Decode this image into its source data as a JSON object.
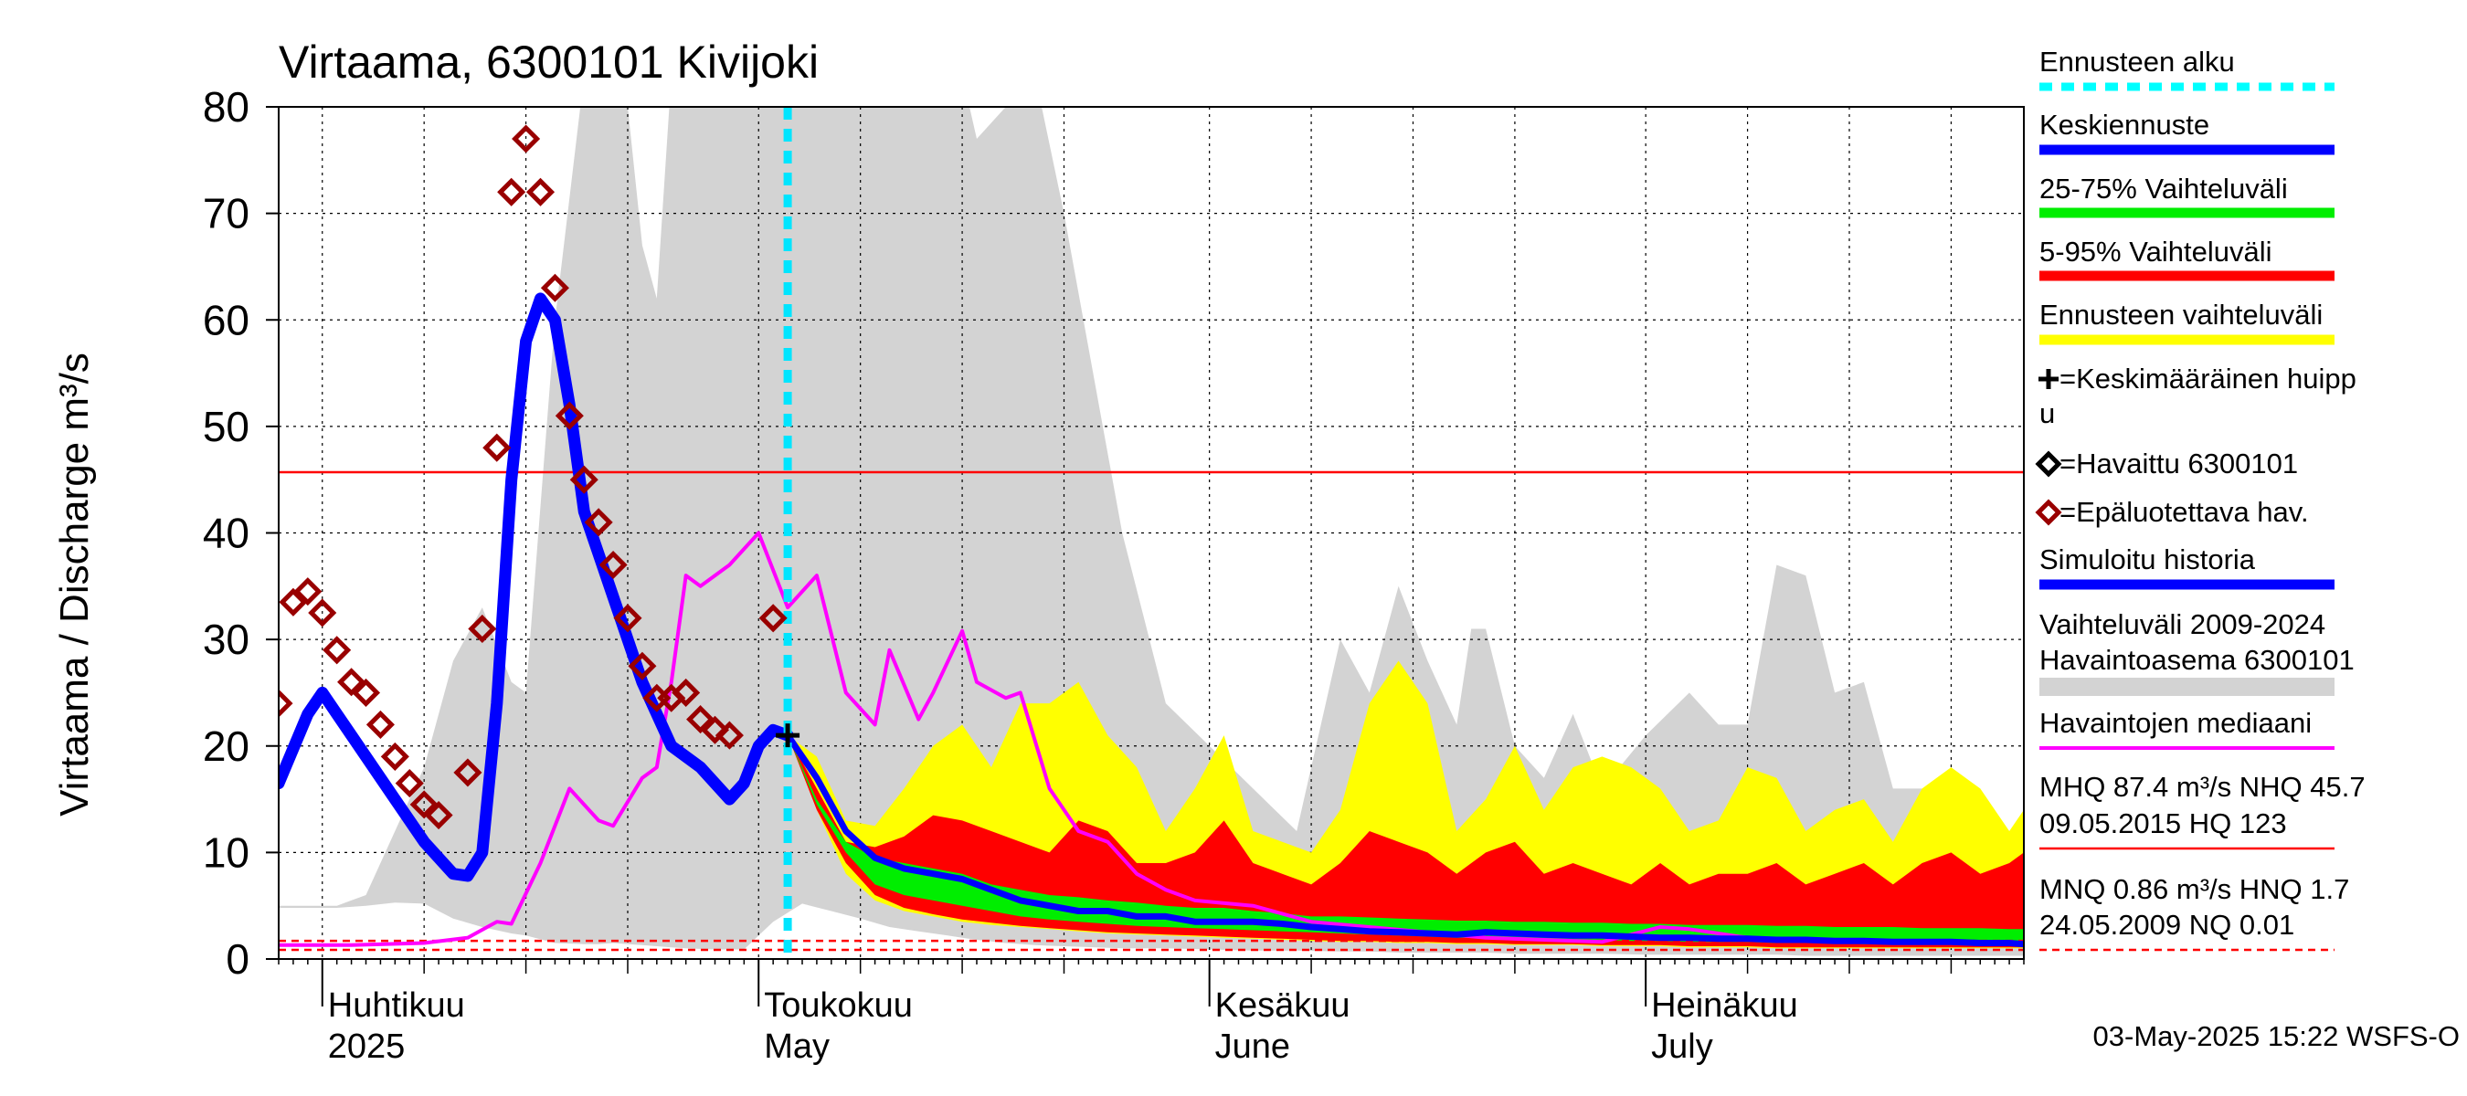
{
  "chart_data": {
    "type": "area",
    "title": "Virtaama, 6300101 Kivijoki",
    "ylabel": "Virtaama / Discharge    m³/s",
    "ylim": [
      0,
      80
    ],
    "yticks": [
      0,
      10,
      20,
      30,
      40,
      50,
      60,
      70,
      80
    ],
    "xlim": [
      "2025-03-29",
      "2025-07-27"
    ],
    "grid": true,
    "x_major_labels": [
      {
        "date": "2025-04-01",
        "line1": "Huhtikuu",
        "line2": "2025"
      },
      {
        "date": "2025-05-01",
        "line1": "Toukokuu",
        "line2": "May"
      },
      {
        "date": "2025-06-01",
        "line1": "Kesäkuu",
        "line2": "June"
      },
      {
        "date": "2025-07-01",
        "line1": "Heinäkuu",
        "line2": "July"
      }
    ],
    "forecast_start": "2025-05-03",
    "reference_lines": [
      {
        "label": "NHQ",
        "value": 45.7,
        "color": "#ff0000",
        "style": "solid"
      },
      {
        "label": "HNQ",
        "value": 1.7,
        "color": "#ff0000",
        "style": "dashed"
      },
      {
        "label": "MNQ",
        "value": 0.86,
        "color": "#ff0000",
        "style": "dashed"
      }
    ],
    "historical_range": {
      "name": "Vaihteluväli 2009-2024 Havaintoasema 6300101",
      "color": "#d3d3d3",
      "x": [
        "2025-03-29",
        "2025-04-02",
        "2025-04-04",
        "2025-04-06",
        "2025-04-08",
        "2025-04-10",
        "2025-04-12",
        "2025-04-14",
        "2025-04-15",
        "2025-04-17",
        "2025-04-19",
        "2025-04-20",
        "2025-04-21",
        "2025-04-22",
        "2025-04-23",
        "2025-04-24",
        "2025-04-25",
        "2025-04-26",
        "2025-04-28",
        "2025-04-29",
        "2025-04-30",
        "2025-05-02",
        "2025-05-04",
        "2025-05-06",
        "2025-05-08",
        "2025-05-10",
        "2025-05-12",
        "2025-05-13",
        "2025-05-14",
        "2025-05-15",
        "2025-05-16",
        "2025-05-18",
        "2025-05-20",
        "2025-05-22",
        "2025-05-26",
        "2025-05-29",
        "2025-06-01",
        "2025-06-04",
        "2025-06-07",
        "2025-06-10",
        "2025-06-12",
        "2025-06-14",
        "2025-06-16",
        "2025-06-18",
        "2025-06-19",
        "2025-06-20",
        "2025-06-22",
        "2025-06-24",
        "2025-06-26",
        "2025-06-28",
        "2025-07-01",
        "2025-07-04",
        "2025-07-06",
        "2025-07-08",
        "2025-07-10",
        "2025-07-12",
        "2025-07-14",
        "2025-07-16",
        "2025-07-18",
        "2025-07-20",
        "2025-07-22",
        "2025-07-24",
        "2025-07-26",
        "2025-07-27"
      ],
      "low": [
        4.8,
        4.8,
        5.0,
        5.3,
        5.2,
        3.8,
        3.0,
        2.4,
        2.2,
        1.5,
        1.4,
        1.4,
        1.5,
        1.4,
        1.3,
        1.2,
        1.1,
        1.0,
        0.9,
        0.9,
        0.9,
        3.5,
        5.2,
        4.5,
        3.8,
        3.0,
        2.6,
        2.4,
        2.2,
        2.0,
        1.8,
        1.5,
        1.3,
        1.2,
        1.0,
        1.0,
        0.9,
        0.8,
        0.8,
        0.7,
        0.7,
        0.6,
        0.6,
        0.6,
        0.6,
        0.6,
        0.5,
        0.5,
        0.5,
        0.5,
        0.4,
        0.4,
        0.4,
        0.4,
        0.4,
        0.3,
        0.3,
        0.3,
        0.3,
        0.3,
        0.3,
        0.3,
        0.3,
        0.3
      ],
      "high": [
        5.0,
        5.0,
        6.0,
        12.0,
        18.0,
        28.0,
        33.0,
        26.0,
        25.0,
        60.0,
        83.0,
        83.0,
        83.0,
        80.0,
        67.0,
        62.0,
        83.0,
        83.0,
        83.0,
        83.0,
        83.0,
        83.0,
        83.0,
        83.0,
        83.0,
        83.0,
        83.0,
        83.0,
        83.0,
        83.0,
        77.0,
        80.0,
        83.0,
        70.0,
        40.0,
        24.0,
        20.0,
        16.0,
        12.0,
        30.0,
        25.0,
        35.0,
        28.0,
        22.0,
        31.0,
        31.0,
        20.0,
        17.0,
        23.0,
        16.0,
        21.0,
        25.0,
        22.0,
        22.0,
        37.0,
        36.0,
        25.0,
        26.0,
        16.0,
        16.0,
        12.0,
        14.0,
        12.0,
        12.0
      ]
    },
    "forecast_range": {
      "name": "Ennusteen vaihteluväli",
      "color": "#ffff00",
      "x": [
        "2025-05-03",
        "2025-05-05",
        "2025-05-07",
        "2025-05-09",
        "2025-05-11",
        "2025-05-13",
        "2025-05-15",
        "2025-05-17",
        "2025-05-19",
        "2025-05-21",
        "2025-05-23",
        "2025-05-25",
        "2025-05-27",
        "2025-05-29",
        "2025-05-31",
        "2025-06-02",
        "2025-06-04",
        "2025-06-06",
        "2025-06-08",
        "2025-06-10",
        "2025-06-12",
        "2025-06-14",
        "2025-06-16",
        "2025-06-18",
        "2025-06-20",
        "2025-06-22",
        "2025-06-24",
        "2025-06-26",
        "2025-06-28",
        "2025-06-30",
        "2025-07-02",
        "2025-07-04",
        "2025-07-06",
        "2025-07-08",
        "2025-07-10",
        "2025-07-12",
        "2025-07-14",
        "2025-07-16",
        "2025-07-18",
        "2025-07-20",
        "2025-07-22",
        "2025-07-24",
        "2025-07-26",
        "2025-07-27"
      ],
      "low": [
        21.0,
        14.0,
        8.0,
        5.5,
        4.5,
        4.0,
        3.5,
        3.2,
        3.0,
        2.8,
        2.6,
        2.4,
        2.3,
        2.2,
        2.1,
        2.0,
        1.9,
        1.8,
        1.7,
        1.6,
        1.6,
        1.5,
        1.5,
        1.4,
        1.4,
        1.3,
        1.3,
        1.3,
        1.2,
        1.2,
        1.2,
        1.1,
        1.1,
        1.1,
        1.0,
        1.0,
        1.0,
        1.0,
        1.0,
        1.0,
        1.0,
        1.0,
        1.0,
        1.0
      ],
      "high": [
        21.0,
        19.0,
        13.0,
        12.5,
        16.0,
        20.0,
        22.0,
        18.0,
        24.0,
        24.0,
        26.0,
        21.0,
        18.0,
        12.0,
        16.0,
        21.0,
        12.0,
        11.0,
        10.0,
        14.0,
        24.0,
        28.0,
        24.0,
        12.0,
        15.0,
        20.0,
        14.0,
        18.0,
        19.0,
        18.0,
        16.0,
        12.0,
        13.0,
        18.0,
        17.0,
        12.0,
        14.0,
        15.0,
        11.0,
        16.0,
        18.0,
        16.0,
        12.0,
        14.0
      ]
    },
    "range_5_95": {
      "name": "5-95% Vaihteluväli",
      "color": "#ff0000",
      "x": [
        "2025-05-03",
        "2025-05-05",
        "2025-05-07",
        "2025-05-09",
        "2025-05-11",
        "2025-05-13",
        "2025-05-15",
        "2025-05-17",
        "2025-05-19",
        "2025-05-21",
        "2025-05-23",
        "2025-05-25",
        "2025-05-27",
        "2025-05-29",
        "2025-05-31",
        "2025-06-02",
        "2025-06-04",
        "2025-06-06",
        "2025-06-08",
        "2025-06-10",
        "2025-06-12",
        "2025-06-14",
        "2025-06-16",
        "2025-06-18",
        "2025-06-20",
        "2025-06-22",
        "2025-06-24",
        "2025-06-26",
        "2025-06-28",
        "2025-06-30",
        "2025-07-02",
        "2025-07-04",
        "2025-07-06",
        "2025-07-08",
        "2025-07-10",
        "2025-07-12",
        "2025-07-14",
        "2025-07-16",
        "2025-07-18",
        "2025-07-20",
        "2025-07-22",
        "2025-07-24",
        "2025-07-26",
        "2025-07-27"
      ],
      "low": [
        21.0,
        14.0,
        9.0,
        6.0,
        4.8,
        4.2,
        3.7,
        3.4,
        3.1,
        2.9,
        2.7,
        2.5,
        2.4,
        2.3,
        2.2,
        2.1,
        2.0,
        1.9,
        1.8,
        1.7,
        1.7,
        1.6,
        1.6,
        1.5,
        1.5,
        1.4,
        1.4,
        1.4,
        1.3,
        1.3,
        1.3,
        1.2,
        1.2,
        1.2,
        1.1,
        1.1,
        1.1,
        1.1,
        1.1,
        1.1,
        1.1,
        1.1,
        1.1,
        1.1
      ],
      "high": [
        21.0,
        16.0,
        11.0,
        10.5,
        11.5,
        13.5,
        13.0,
        12.0,
        11.0,
        10.0,
        13.0,
        12.0,
        9.0,
        9.0,
        10.0,
        13.0,
        9.0,
        8.0,
        7.0,
        9.0,
        12.0,
        11.0,
        10.0,
        8.0,
        10.0,
        11.0,
        8.0,
        9.0,
        8.0,
        7.0,
        9.0,
        7.0,
        8.0,
        8.0,
        9.0,
        7.0,
        8.0,
        9.0,
        7.0,
        9.0,
        10.0,
        8.0,
        9.0,
        10.0
      ]
    },
    "range_25_75": {
      "name": "25-75% Vaihteluväli",
      "color": "#00ee00",
      "x": [
        "2025-05-03",
        "2025-05-05",
        "2025-05-07",
        "2025-05-09",
        "2025-05-11",
        "2025-05-13",
        "2025-05-15",
        "2025-05-17",
        "2025-05-19",
        "2025-05-21",
        "2025-05-23",
        "2025-05-25",
        "2025-05-27",
        "2025-05-29",
        "2025-05-31",
        "2025-06-02",
        "2025-06-04",
        "2025-06-06",
        "2025-06-08",
        "2025-06-10",
        "2025-06-12",
        "2025-06-14",
        "2025-06-16",
        "2025-06-18",
        "2025-06-20",
        "2025-06-22",
        "2025-06-24",
        "2025-06-26",
        "2025-06-28",
        "2025-06-30",
        "2025-07-02",
        "2025-07-04",
        "2025-07-06",
        "2025-07-08",
        "2025-07-10",
        "2025-07-12",
        "2025-07-14",
        "2025-07-16",
        "2025-07-18",
        "2025-07-20",
        "2025-07-22",
        "2025-07-24",
        "2025-07-26",
        "2025-07-27"
      ],
      "low": [
        21.0,
        14.5,
        10.0,
        7.0,
        6.0,
        5.5,
        5.0,
        4.5,
        4.0,
        3.7,
        3.5,
        3.3,
        3.1,
        3.0,
        2.9,
        2.8,
        2.7,
        2.6,
        2.5,
        2.4,
        2.3,
        2.2,
        2.1,
        2.0,
        2.0,
        1.9,
        1.9,
        1.8,
        1.8,
        1.7,
        1.7,
        1.6,
        1.6,
        1.6,
        1.5,
        1.5,
        1.5,
        1.4,
        1.4,
        1.4,
        1.4,
        1.3,
        1.3,
        1.3
      ],
      "high": [
        21.0,
        15.0,
        11.0,
        9.5,
        9.0,
        8.5,
        8.0,
        7.0,
        6.5,
        6.0,
        5.8,
        5.5,
        5.3,
        5.0,
        4.8,
        4.8,
        4.5,
        4.3,
        4.0,
        4.0,
        3.9,
        3.8,
        3.7,
        3.6,
        3.6,
        3.5,
        3.5,
        3.4,
        3.4,
        3.3,
        3.3,
        3.2,
        3.2,
        3.2,
        3.1,
        3.1,
        3.0,
        3.0,
        3.0,
        2.9,
        2.9,
        2.9,
        2.8,
        2.8
      ]
    },
    "mean_forecast": {
      "name": "Keskiennuste",
      "color": "#0000ff",
      "x": [
        "2025-05-03",
        "2025-05-05",
        "2025-05-07",
        "2025-05-09",
        "2025-05-11",
        "2025-05-13",
        "2025-05-15",
        "2025-05-17",
        "2025-05-19",
        "2025-05-21",
        "2025-05-23",
        "2025-05-25",
        "2025-05-27",
        "2025-05-29",
        "2025-05-31",
        "2025-06-02",
        "2025-06-04",
        "2025-06-06",
        "2025-06-08",
        "2025-06-10",
        "2025-06-12",
        "2025-06-14",
        "2025-06-16",
        "2025-06-18",
        "2025-06-20",
        "2025-06-22",
        "2025-06-24",
        "2025-06-26",
        "2025-06-28",
        "2025-06-30",
        "2025-07-02",
        "2025-07-04",
        "2025-07-06",
        "2025-07-08",
        "2025-07-10",
        "2025-07-12",
        "2025-07-14",
        "2025-07-16",
        "2025-07-18",
        "2025-07-20",
        "2025-07-22",
        "2025-07-24",
        "2025-07-26",
        "2025-07-27"
      ],
      "values": [
        21.0,
        17.0,
        12.0,
        9.5,
        8.5,
        8.0,
        7.5,
        6.5,
        5.5,
        5.0,
        4.5,
        4.5,
        4.0,
        4.0,
        3.5,
        3.5,
        3.5,
        3.3,
        3.0,
        2.8,
        2.6,
        2.5,
        2.4,
        2.3,
        2.5,
        2.4,
        2.3,
        2.2,
        2.2,
        2.1,
        2.0,
        2.0,
        1.9,
        1.9,
        1.8,
        1.8,
        1.7,
        1.7,
        1.6,
        1.6,
        1.6,
        1.5,
        1.5,
        1.4
      ]
    },
    "simulated_history": {
      "name": "Simuloitu historia",
      "color": "#0000ff",
      "x": [
        "2025-03-29",
        "2025-03-31",
        "2025-04-01",
        "2025-04-02",
        "2025-04-04",
        "2025-04-06",
        "2025-04-08",
        "2025-04-10",
        "2025-04-11",
        "2025-04-12",
        "2025-04-13",
        "2025-04-14",
        "2025-04-15",
        "2025-04-16",
        "2025-04-17",
        "2025-04-18",
        "2025-04-19",
        "2025-04-20",
        "2025-04-21",
        "2025-04-23",
        "2025-04-25",
        "2025-04-27",
        "2025-04-29",
        "2025-04-30",
        "2025-05-01",
        "2025-05-02",
        "2025-05-03"
      ],
      "values": [
        16.5,
        23.0,
        25.0,
        23.0,
        19.0,
        15.0,
        11.0,
        8.0,
        7.8,
        10.0,
        24.0,
        45.0,
        58.0,
        62.0,
        60.0,
        52.0,
        42.0,
        38.0,
        34.0,
        26.0,
        20.0,
        18.0,
        15.0,
        16.5,
        20.0,
        21.5,
        21.0
      ]
    },
    "observed_median": {
      "name": "Havaintojen mediaani",
      "color": "#ff00ff",
      "x": [
        "2025-03-29",
        "2025-04-03",
        "2025-04-08",
        "2025-04-11",
        "2025-04-13",
        "2025-04-14",
        "2025-04-16",
        "2025-04-18",
        "2025-04-20",
        "2025-04-21",
        "2025-04-23",
        "2025-04-24",
        "2025-04-25",
        "2025-04-26",
        "2025-04-27",
        "2025-04-29",
        "2025-05-01",
        "2025-05-03",
        "2025-05-05",
        "2025-05-07",
        "2025-05-09",
        "2025-05-10",
        "2025-05-12",
        "2025-05-13",
        "2025-05-15",
        "2025-05-16",
        "2025-05-18",
        "2025-05-19",
        "2025-05-21",
        "2025-05-23",
        "2025-05-25",
        "2025-05-27",
        "2025-05-29",
        "2025-05-31",
        "2025-06-04",
        "2025-06-08",
        "2025-06-12",
        "2025-06-16",
        "2025-06-20",
        "2025-06-24",
        "2025-06-28",
        "2025-07-02",
        "2025-07-04",
        "2025-07-08",
        "2025-07-12",
        "2025-07-16",
        "2025-07-20",
        "2025-07-24",
        "2025-07-27"
      ],
      "values": [
        1.3,
        1.3,
        1.5,
        2.0,
        3.5,
        3.3,
        9.0,
        16.0,
        13.0,
        12.5,
        17.0,
        18.0,
        26.0,
        36.0,
        35.0,
        37.0,
        40.0,
        33.0,
        36.0,
        25.0,
        22.0,
        29.0,
        22.5,
        25.0,
        30.8,
        26.0,
        24.5,
        25.0,
        16.0,
        12.0,
        11.0,
        8.0,
        6.5,
        5.5,
        5.0,
        3.5,
        3.0,
        2.5,
        2.0,
        1.8,
        1.6,
        3.0,
        2.8,
        2.0,
        1.8,
        1.7,
        1.6,
        1.5,
        1.4
      ]
    },
    "unreliable_observations": {
      "name": "=Epäluotettava hav.",
      "color": "#990000",
      "marker": "diamond",
      "x": [
        "2025-03-29",
        "2025-03-30",
        "2025-03-31",
        "2025-04-01",
        "2025-04-02",
        "2025-04-03",
        "2025-04-04",
        "2025-04-05",
        "2025-04-06",
        "2025-04-07",
        "2025-04-08",
        "2025-04-09",
        "2025-04-11",
        "2025-04-12",
        "2025-04-13",
        "2025-04-14",
        "2025-04-15",
        "2025-04-16",
        "2025-04-17",
        "2025-04-18",
        "2025-04-19",
        "2025-04-20",
        "2025-04-21",
        "2025-04-22",
        "2025-04-23",
        "2025-04-24",
        "2025-04-25",
        "2025-04-26",
        "2025-04-27",
        "2025-04-28",
        "2025-04-29",
        "2025-05-02"
      ],
      "values": [
        24.0,
        33.5,
        34.5,
        32.5,
        29.0,
        26.0,
        25.0,
        22.0,
        19.0,
        16.5,
        14.5,
        13.5,
        17.5,
        31.0,
        48.0,
        72.0,
        77.0,
        72.0,
        63.0,
        51.0,
        45.0,
        41.0,
        37.0,
        32.0,
        27.5,
        24.5,
        24.5,
        25.0,
        22.5,
        21.5,
        21.0,
        32.0
      ]
    },
    "mean_peak": {
      "name": "=Keskimääräinen huippu",
      "date": "2025-05-03",
      "value": 21.0,
      "marker": "plus",
      "color": "#000000"
    }
  },
  "legend": {
    "placement": "right",
    "items": [
      {
        "label": "Ennusteen alku",
        "swatch": "dashed",
        "color": "#00ffff"
      },
      {
        "label": "Keskiennuste",
        "swatch": "bar",
        "color": "#0000ff"
      },
      {
        "label": "25-75% Vaihteluväli",
        "swatch": "bar",
        "color": "#00ee00"
      },
      {
        "label": "5-95% Vaihteluväli",
        "swatch": "bar",
        "color": "#ff0000"
      },
      {
        "label": "Ennusteen vaihteluväli",
        "swatch": "bar",
        "color": "#ffff00"
      },
      {
        "label": "=Keskimääräinen huipp",
        "label2": "u",
        "swatch": "plus",
        "color": "#000000"
      },
      {
        "label": "=Havaittu 6300101",
        "swatch": "diamond",
        "color": "#000000"
      },
      {
        "label": "=Epäluotettava hav.",
        "swatch": "diamond",
        "color": "#990000"
      },
      {
        "label": "Simuloitu historia",
        "swatch": "bar",
        "color": "#0000ff"
      },
      {
        "label": "Vaihteluväli 2009-2024",
        "label2": " Havaintoasema 6300101",
        "swatch": "greybar",
        "color": "#d3d3d3"
      },
      {
        "label": "Havaintojen mediaani",
        "swatch": "thin",
        "color": "#ff00ff"
      },
      {
        "label": "MHQ 87.4 m³/s NHQ 45.7",
        "label2": "09.05.2015 HQ  123",
        "swatch": "thinred",
        "color": "#ff0000"
      },
      {
        "label": "MNQ 0.86 m³/s HNQ  1.7",
        "label2": "24.05.2009 NQ 0.01",
        "swatch": "dashedred",
        "color": "#ff0000"
      }
    ]
  },
  "timestamp": "03-May-2025 15:22 WSFS-O"
}
